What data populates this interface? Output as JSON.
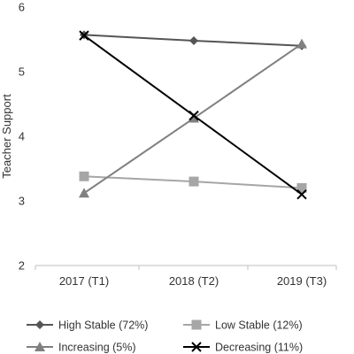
{
  "chart_data": {
    "type": "line",
    "title": "",
    "xlabel": "",
    "ylabel": "Teacher Support",
    "ylim": [
      2,
      6
    ],
    "yticks": [
      2,
      3,
      4,
      5,
      6
    ],
    "categories": [
      "2017 (T1)",
      "2018 (T2)",
      "2019 (T3)"
    ],
    "grid": false,
    "legend_position": "bottom",
    "series": [
      {
        "name": "High Stable (72%)",
        "values": [
          5.57,
          5.48,
          5.4
        ],
        "color": "#555555",
        "marker": "diamond"
      },
      {
        "name": "Low Stable (12%)",
        "values": [
          3.38,
          3.3,
          3.2
        ],
        "color": "#a6a6a6",
        "marker": "square"
      },
      {
        "name": "Increasing (5%)",
        "values": [
          3.12,
          4.28,
          5.43
        ],
        "color": "#808080",
        "marker": "triangle"
      },
      {
        "name": "Decreasing (11%)",
        "values": [
          5.56,
          4.32,
          3.1
        ],
        "color": "#000000",
        "marker": "x"
      }
    ]
  }
}
